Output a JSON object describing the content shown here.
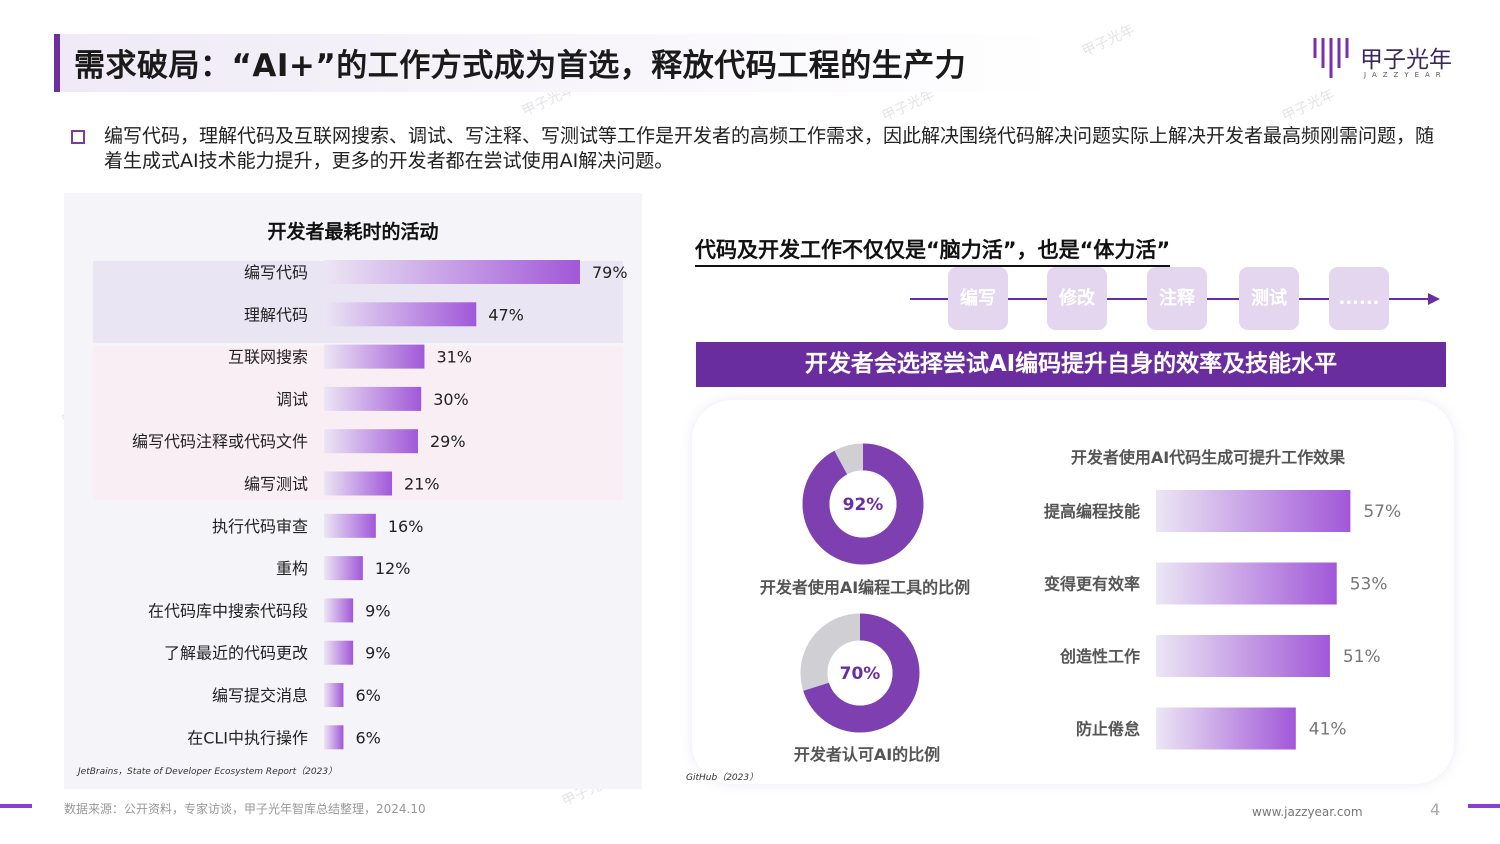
{
  "header": {
    "title": "需求破局：“AI+”的工作方式成为首选，释放代码工程的生产力",
    "logo_text": "甲子光年",
    "logo_sub": "JAZZYEAR"
  },
  "intro": "编写代码，理解代码及互联网搜索、调试、写注释、写测试等工作是开发者的高频工作需求，因此解决围绕代码解决问题实际上解决开发者最高频刚需问题，随着生成式AI技术能力提升，更多的开发者都在尝试使用AI解决问题。",
  "left_chart": {
    "source": "JetBrains，State of Developer Ecosystem Report（2023）"
  },
  "workflow": {
    "title": "代码及开发工作不仅仅是“脑力活”，也是“体力活”",
    "steps": [
      "编写",
      "修改",
      "注释",
      "测试",
      "......"
    ]
  },
  "banner": "开发者会选择尝试AI编码提升自身的效率及技能水平",
  "right_source": "GitHub（2023）",
  "footer": {
    "source": "数据来源：公开资料，专家访谈，甲子光年智库总结整理，2024.10",
    "url": "www.jazzyear.com",
    "page": "4"
  },
  "colors": {
    "accent": "#6a2d9f",
    "bar_start": "#ece6f4",
    "bar_end": "#a158d8",
    "donut": "#7e3fb0",
    "donut_rest": "#cfcfd4"
  },
  "chart_data": [
    {
      "type": "bar",
      "orientation": "horizontal",
      "title": "开发者最耗时的活动",
      "categories": [
        "编写代码",
        "理解代码",
        "互联网搜索",
        "调试",
        "编写代码注释或代码文件",
        "编写测试",
        "执行代码审查",
        "重构",
        "在代码库中搜索代码段",
        "了解最近的代码更改",
        "编写提交消息",
        "在CLI中执行操作"
      ],
      "values": [
        79,
        47,
        31,
        30,
        29,
        21,
        16,
        12,
        9,
        9,
        6,
        6
      ],
      "labels": [
        "79%",
        "47%",
        "31%",
        "30%",
        "29%",
        "21%",
        "16%",
        "12%",
        "9%",
        "9%",
        "6%",
        "6%"
      ],
      "unit": "%",
      "xlim": [
        0,
        100
      ]
    },
    {
      "type": "pie",
      "title": "开发者使用AI编程工具的比例",
      "value": 92,
      "label": "92%"
    },
    {
      "type": "pie",
      "title": "开发者认可AI的比例",
      "value": 70,
      "label": "70%"
    },
    {
      "type": "bar",
      "orientation": "horizontal",
      "title": "开发者使用AI代码生成可提升工作效果",
      "categories": [
        "提高编程技能",
        "变得更有效率",
        "创造性工作",
        "防止倦怠"
      ],
      "values": [
        57,
        53,
        51,
        41
      ],
      "labels": [
        "57%",
        "53%",
        "51%",
        "41%"
      ],
      "unit": "%",
      "xlim": [
        0,
        100
      ]
    }
  ]
}
